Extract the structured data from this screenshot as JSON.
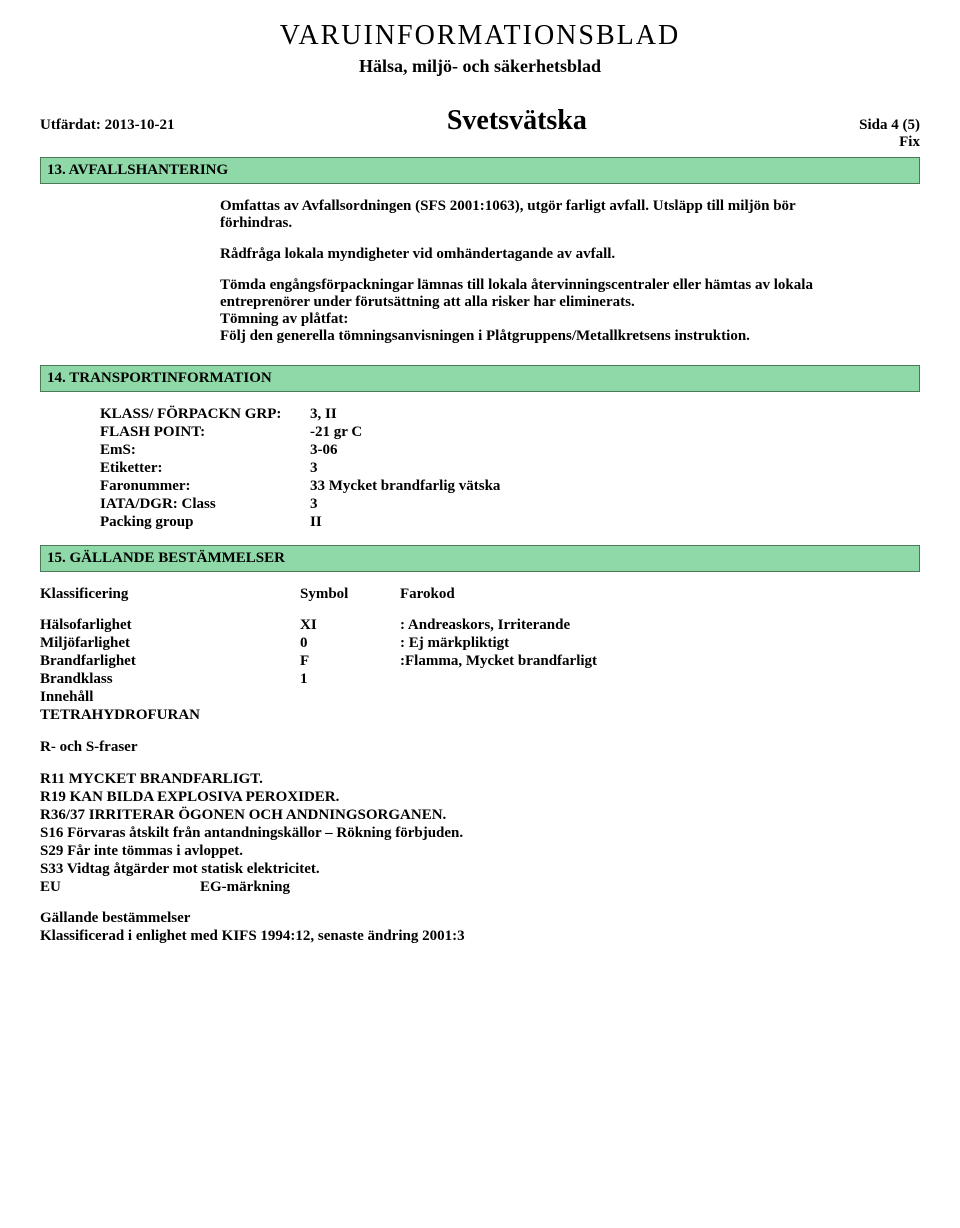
{
  "colors": {
    "section_bg": "#8fd9a8",
    "section_border": "#4a7a5a",
    "text": "#000000",
    "page_bg": "#ffffff"
  },
  "header": {
    "title": "VARUINFORMATIONSBLAD",
    "subtitle": "Hälsa, miljö- och säkerhetsblad",
    "issued_label": "Utfärdat: 2013-10-21",
    "product": "Svetsvätska",
    "page": "Sida 4 (5)",
    "fix": "Fix"
  },
  "sections": {
    "s13": "13. AVFALLSHANTERING",
    "s14": "14. TRANSPORTINFORMATION",
    "s15": "15. GÄLLANDE BESTÄMMELSER"
  },
  "s13_body": {
    "p1": "Omfattas av Avfallsordningen (SFS 2001:1063), utgör farligt avfall. Utsläpp till miljön bör förhindras.",
    "p2": "Rådfråga lokala myndigheter vid omhändertagande av avfall.",
    "p3": "Tömda engångsförpackningar lämnas till lokala återvinningscentraler eller hämtas av lokala entreprenörer under förutsättning att alla risker har eliminerats.",
    "p4": "Tömning av plåtfat:",
    "p5": "Följ den generella tömningsanvisningen i Plåtgruppens/Metallkretsens instruktion."
  },
  "s14_table": {
    "rows": [
      {
        "key": "KLASS/ FÖRPACKN GRP:",
        "val": "3, II"
      },
      {
        "key": "FLASH POINT:",
        "val": "-21 gr C"
      },
      {
        "key": "EmS:",
        "val": "3-06"
      },
      {
        "key": "Etiketter:",
        "val": "3"
      },
      {
        "key": "Faronummer:",
        "val": "33  Mycket brandfarlig vätska"
      },
      {
        "key": "IATA/DGR: Class",
        "val": "3"
      },
      {
        "key": "Packing group",
        "val": "II"
      }
    ]
  },
  "s15": {
    "header": {
      "c1": "Klassificering",
      "c2": "Symbol",
      "c3": "Farokod"
    },
    "rows": [
      {
        "c1": "Hälsofarlighet",
        "c2": "XI",
        "c3": ": Andreaskors, Irriterande"
      },
      {
        "c1": "Miljöfarlighet",
        "c2": "0",
        "c3": ": Ej märkpliktigt"
      },
      {
        "c1": "Brandfarlighet",
        "c2": "F",
        "c3": ":Flamma, Mycket brandfarligt"
      },
      {
        "c1": "Brandklass",
        "c2": "1",
        "c3": ""
      },
      {
        "c1": "Innehåll",
        "c2": "",
        "c3": ""
      },
      {
        "c1": "TETRAHYDROFURAN",
        "c2": "",
        "c3": ""
      }
    ],
    "rs_label": "R- och S-fraser",
    "phrases": [
      "R11 MYCKET BRANDFARLIGT.",
      "R19 KAN BILDA EXPLOSIVA PEROXIDER.",
      "R36/37 IRRITERAR ÖGONEN OCH ANDNINGSORGANEN.",
      "S16 Förvaras åtskilt från antandningskällor – Rökning förbjuden.",
      "S29 Får inte tömmas i avloppet.",
      "S33 Vidtag åtgärder mot statisk elektricitet."
    ],
    "eu": {
      "c1": "EU",
      "c2": "EG-märkning"
    },
    "bestammelser_label": "Gällande bestämmelser",
    "bestammelser_line": "Klassificerad i enlighet med KIFS 1994:12, senaste ändring 2001:3"
  }
}
